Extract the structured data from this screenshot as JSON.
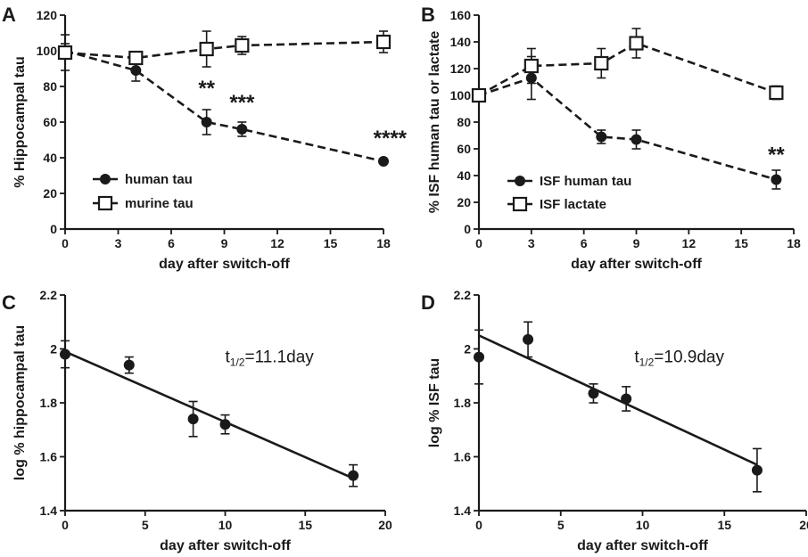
{
  "chart_data": [
    {
      "panel": "A",
      "type": "line",
      "xlabel": "day after switch-off",
      "ylabel": "% Hippocampal tau",
      "xlim": [
        0,
        18
      ],
      "ylim": [
        0,
        120
      ],
      "xticks": [
        0,
        3,
        6,
        9,
        12,
        15,
        18
      ],
      "yticks": [
        0,
        20,
        40,
        60,
        80,
        100,
        120
      ],
      "legend_position": "bottom-left",
      "series": [
        {
          "name": "human tau",
          "marker": "filled-circle",
          "x": [
            0,
            4,
            8,
            10,
            18
          ],
          "y": [
            100,
            89,
            60,
            56,
            38
          ],
          "err": [
            4,
            6,
            7,
            4,
            1
          ]
        },
        {
          "name": "murine tau",
          "marker": "open-square",
          "x": [
            0,
            4,
            8,
            10,
            18
          ],
          "y": [
            99,
            96,
            101,
            103,
            105
          ],
          "err": [
            10,
            1,
            10,
            5,
            6
          ]
        }
      ],
      "annotations": [
        {
          "text": "**",
          "x": 8,
          "y": 80
        },
        {
          "text": "***",
          "x": 10,
          "y": 72
        },
        {
          "text": "****",
          "x": 18,
          "y": 52
        }
      ]
    },
    {
      "panel": "B",
      "type": "line",
      "xlabel": "day after switch-off",
      "ylabel": "% ISF human tau or lactate",
      "xlim": [
        0,
        18
      ],
      "ylim": [
        0,
        160
      ],
      "xticks": [
        0,
        3,
        6,
        9,
        12,
        15,
        18
      ],
      "yticks": [
        0,
        20,
        40,
        60,
        80,
        100,
        120,
        140,
        160
      ],
      "legend_position": "bottom-left",
      "series": [
        {
          "name": "ISF human tau",
          "marker": "filled-circle",
          "x": [
            0,
            3,
            7,
            9,
            17
          ],
          "y": [
            100,
            113,
            69,
            67,
            37
          ],
          "err": [
            1,
            16,
            5,
            7,
            7
          ]
        },
        {
          "name": "ISF lactate",
          "marker": "open-square",
          "x": [
            0,
            3,
            7,
            9,
            17
          ],
          "y": [
            100,
            122,
            124,
            139,
            102
          ],
          "err": [
            1,
            13,
            11,
            11,
            5
          ]
        }
      ],
      "annotations": [
        {
          "text": "**",
          "x": 17,
          "y": 57
        }
      ]
    },
    {
      "panel": "C",
      "type": "scatter",
      "xlabel": "day after switch-off",
      "ylabel": "log % hippocampal tau",
      "xlim": [
        0,
        20
      ],
      "ylim": [
        1.4,
        2.2
      ],
      "xticks": [
        0,
        5,
        10,
        15,
        20
      ],
      "yticks": [
        1.4,
        1.6,
        1.8,
        2.0,
        2.2
      ],
      "series": [
        {
          "name": "",
          "marker": "filled-circle",
          "x": [
            0,
            4,
            8,
            10,
            18
          ],
          "y": [
            1.98,
            1.94,
            1.74,
            1.72,
            1.53
          ],
          "err": [
            0.05,
            0.03,
            0.065,
            0.035,
            0.04
          ]
        }
      ],
      "fit": {
        "x": [
          0,
          18
        ],
        "y": [
          1.99,
          1.52
        ]
      },
      "half_life": {
        "prefix": "t",
        "sub": "1/2",
        "value": "=11.1day",
        "x": 10,
        "y": 1.95
      }
    },
    {
      "panel": "D",
      "type": "scatter",
      "xlabel": "day after switch-off",
      "ylabel": "log % ISF tau",
      "xlim": [
        0,
        20
      ],
      "ylim": [
        1.4,
        2.2
      ],
      "xticks": [
        0,
        5,
        10,
        15,
        20
      ],
      "yticks": [
        1.4,
        1.6,
        1.8,
        2.0,
        2.2
      ],
      "series": [
        {
          "name": "",
          "marker": "filled-circle",
          "x": [
            0,
            3,
            7,
            9,
            17
          ],
          "y": [
            1.97,
            2.035,
            1.835,
            1.815,
            1.55
          ],
          "err": [
            0.1,
            0.065,
            0.035,
            0.045,
            0.08
          ]
        }
      ],
      "fit": {
        "x": [
          0,
          17
        ],
        "y": [
          2.05,
          1.57
        ]
      },
      "half_life": {
        "prefix": "t",
        "sub": "1/2",
        "value": "=10.9day",
        "x": 9.5,
        "y": 1.95
      }
    }
  ]
}
